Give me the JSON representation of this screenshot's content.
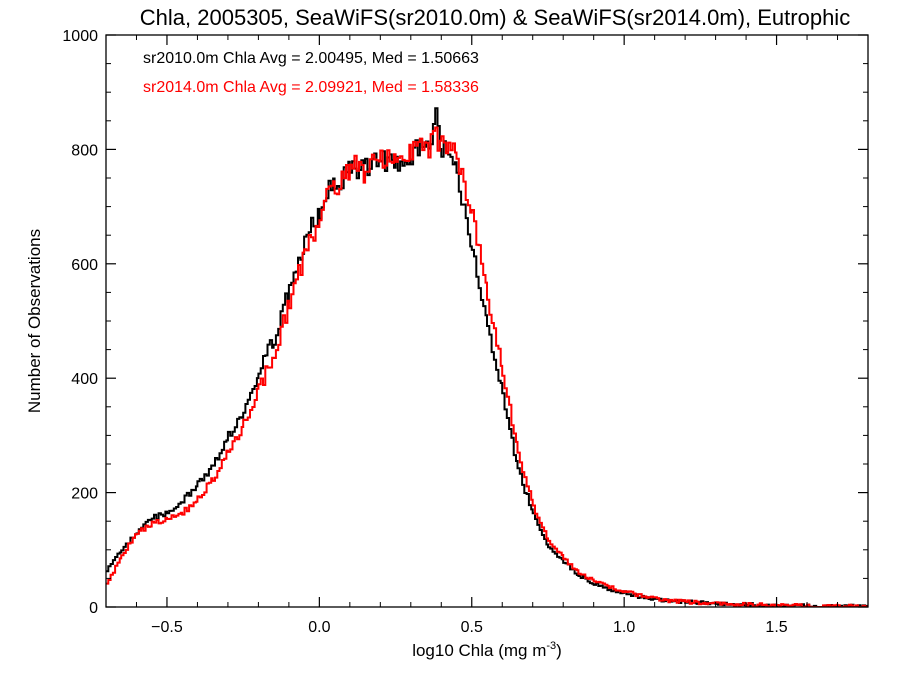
{
  "chart_data": {
    "type": "line",
    "title": "Chla, 2005305, SeaWiFS(sr2010.0m) & SeaWiFS(sr2014.0m), Eutrophic",
    "xlabel": "log10 Chla (mg m",
    "xlabel_exp": "-3",
    "xlabel_close": ")",
    "ylabel": "Number of Observations",
    "xlim": [
      -0.7,
      1.8
    ],
    "ylim": [
      0,
      1000
    ],
    "xticks": [
      -0.5,
      0.0,
      0.5,
      1.0,
      1.5
    ],
    "xtick_labels": [
      "−0.5",
      "0.0",
      "0.5",
      "1.0",
      "1.5"
    ],
    "yticks": [
      0,
      200,
      400,
      600,
      800,
      1000
    ],
    "ytick_labels": [
      "0",
      "200",
      "400",
      "600",
      "800",
      "1000"
    ],
    "step": "histogram",
    "annotations": [
      {
        "text": "sr2010.0m Chla Avg = 2.00495, Med = 1.50663",
        "color": "#000000"
      },
      {
        "text": "sr2014.0m Chla Avg = 2.09921, Med = 1.58336",
        "color": "#ff0000"
      }
    ],
    "series": [
      {
        "color": "#000000",
        "x": [
          -0.7,
          -0.65,
          -0.6,
          -0.55,
          -0.5,
          -0.45,
          -0.4,
          -0.35,
          -0.3,
          -0.25,
          -0.2,
          -0.15,
          -0.1,
          -0.05,
          0.0,
          0.05,
          0.1,
          0.15,
          0.2,
          0.25,
          0.3,
          0.35,
          0.38,
          0.4,
          0.45,
          0.5,
          0.55,
          0.6,
          0.65,
          0.7,
          0.75,
          0.8,
          0.85,
          0.9,
          0.95,
          1.0,
          1.05,
          1.1,
          1.15,
          1.2,
          1.3,
          1.4,
          1.5,
          1.6,
          1.7,
          1.8
        ],
        "values": [
          65,
          100,
          130,
          155,
          165,
          185,
          215,
          250,
          300,
          345,
          410,
          470,
          555,
          640,
          700,
          740,
          770,
          765,
          775,
          775,
          790,
          805,
          850,
          805,
          750,
          620,
          490,
          370,
          240,
          160,
          105,
          80,
          55,
          40,
          30,
          25,
          18,
          14,
          11,
          9,
          6,
          4,
          3,
          2,
          1,
          1
        ]
      },
      {
        "color": "#ff0000",
        "x": [
          -0.7,
          -0.65,
          -0.6,
          -0.55,
          -0.5,
          -0.45,
          -0.4,
          -0.35,
          -0.3,
          -0.25,
          -0.2,
          -0.15,
          -0.1,
          -0.05,
          0.0,
          0.05,
          0.1,
          0.15,
          0.2,
          0.25,
          0.3,
          0.35,
          0.38,
          0.4,
          0.45,
          0.5,
          0.55,
          0.6,
          0.65,
          0.7,
          0.75,
          0.8,
          0.85,
          0.9,
          0.95,
          1.0,
          1.05,
          1.1,
          1.15,
          1.2,
          1.3,
          1.4,
          1.5,
          1.6,
          1.7,
          1.8
        ],
        "values": [
          40,
          90,
          130,
          145,
          155,
          165,
          190,
          225,
          275,
          320,
          380,
          445,
          530,
          615,
          690,
          735,
          770,
          760,
          780,
          785,
          790,
          800,
          815,
          810,
          780,
          680,
          540,
          410,
          270,
          175,
          115,
          85,
          60,
          45,
          35,
          28,
          20,
          15,
          11,
          9,
          6,
          4,
          3,
          2,
          1,
          1
        ]
      }
    ]
  }
}
